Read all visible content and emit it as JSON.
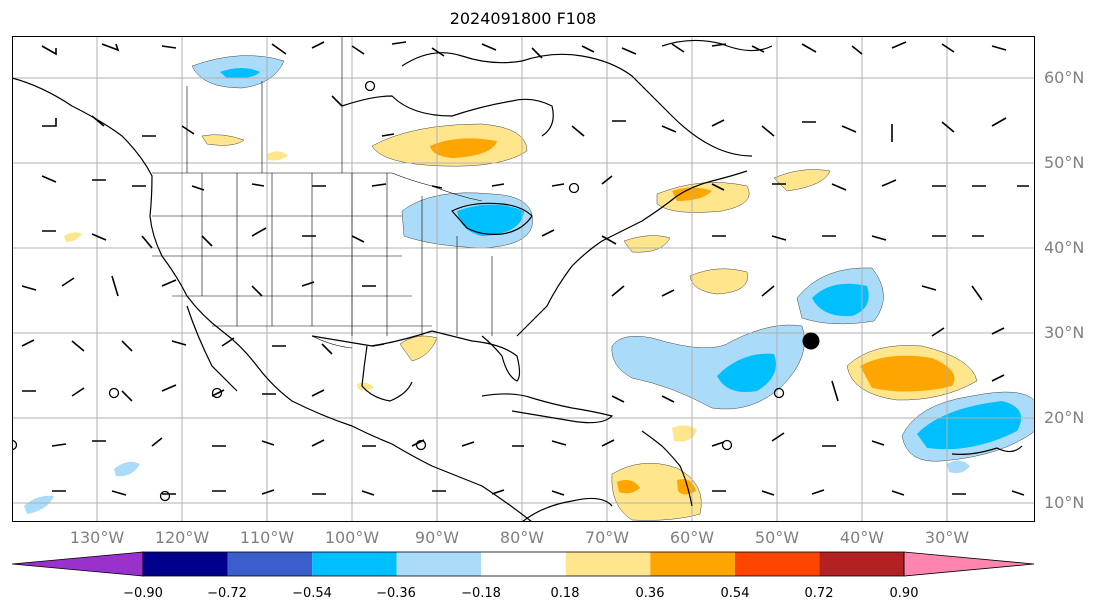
{
  "title": "2024091800 F108",
  "lat_labels": [
    "60°N",
    "50°N",
    "40°N",
    "30°N",
    "20°N",
    "10°N"
  ],
  "lon_labels": [
    "130°W",
    "120°W",
    "110°W",
    "100°W",
    "90°W",
    "80°W",
    "70°W",
    "60°W",
    "50°W",
    "40°W",
    "30°W"
  ],
  "colorbar": {
    "ticks": [
      "−0.90",
      "−0.72",
      "−0.54",
      "−0.36",
      "−0.18",
      "0.18",
      "0.36",
      "0.54",
      "0.72",
      "0.90"
    ],
    "colors": [
      "#9932cc",
      "#00008b",
      "#3a5fcd",
      "#00bfff",
      "#aadcfa",
      "#ffffff",
      "#ffe68c",
      "#ffa500",
      "#ff4500",
      "#b22222",
      "#ff85b0"
    ]
  },
  "contour_colors": {
    "pos1": "#ffe68c",
    "pos2": "#ffa500",
    "neg1": "#aadcfa",
    "neg2": "#00bfff"
  }
}
